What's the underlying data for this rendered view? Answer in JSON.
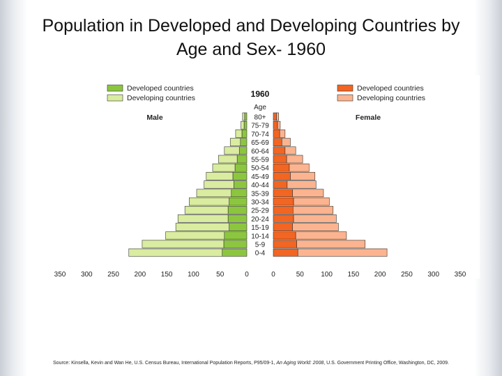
{
  "slide": {
    "title_line1": "Population in Developed and Developing Countries by",
    "title_line2": "Age and Sex- 1960"
  },
  "source": {
    "prefix": "Source: Kinsella, Kevin and Wan He, U.S. Census Bureau, International Population Reports, P95/09-1,",
    "italic": "An Aging World: 2008",
    "suffix": ", U.S. Government Printing Office, Washington, DC, 2009."
  },
  "colors": {
    "male_developed": "#8cc63f",
    "male_developing": "#d9ec9f",
    "female_developed": "#f26522",
    "female_developing": "#fbb48f",
    "outline": "#333333"
  },
  "chart_data": {
    "type": "bar",
    "subtype": "population-pyramid",
    "title": "1960",
    "category_axis_label": "Age",
    "male_label": "Male",
    "female_label": "Female",
    "legend": {
      "male": [
        "Developed countries",
        "Developing countries"
      ],
      "female": [
        "Developed countries",
        "Developing countries"
      ]
    },
    "categories": [
      "80+",
      "75-79",
      "70-74",
      "65-69",
      "60-64",
      "55-59",
      "50-54",
      "45-49",
      "40-44",
      "35-39",
      "30-34",
      "25-29",
      "20-24",
      "15-19",
      "10-14",
      "5-9",
      "0-4"
    ],
    "units": "millions",
    "xlim": [
      -350,
      350
    ],
    "xticks": [
      "350",
      "300",
      "250",
      "200",
      "150",
      "100",
      "50",
      "0",
      "0",
      "50",
      "100",
      "150",
      "200",
      "250",
      "300",
      "350"
    ],
    "series": [
      {
        "name": "Male - Developed countries",
        "values": [
          4,
          5,
          9,
          12,
          14,
          18,
          22,
          26,
          24,
          29,
          33,
          35,
          35,
          33,
          42,
          43,
          46
        ]
      },
      {
        "name": "Male - Developing countries",
        "values": [
          4,
          6,
          12,
          19,
          28,
          35,
          42,
          50,
          56,
          65,
          75,
          81,
          94,
          100,
          110,
          153,
          175
        ]
      },
      {
        "name": "Female - Developed countries",
        "values": [
          6,
          8,
          12,
          16,
          22,
          25,
          30,
          32,
          26,
          36,
          38,
          37,
          38,
          36,
          42,
          44,
          46
        ]
      },
      {
        "name": "Female - Developing countries",
        "values": [
          4,
          5,
          10,
          16,
          20,
          30,
          37,
          46,
          54,
          58,
          67,
          75,
          80,
          86,
          95,
          128,
          167
        ]
      }
    ]
  }
}
